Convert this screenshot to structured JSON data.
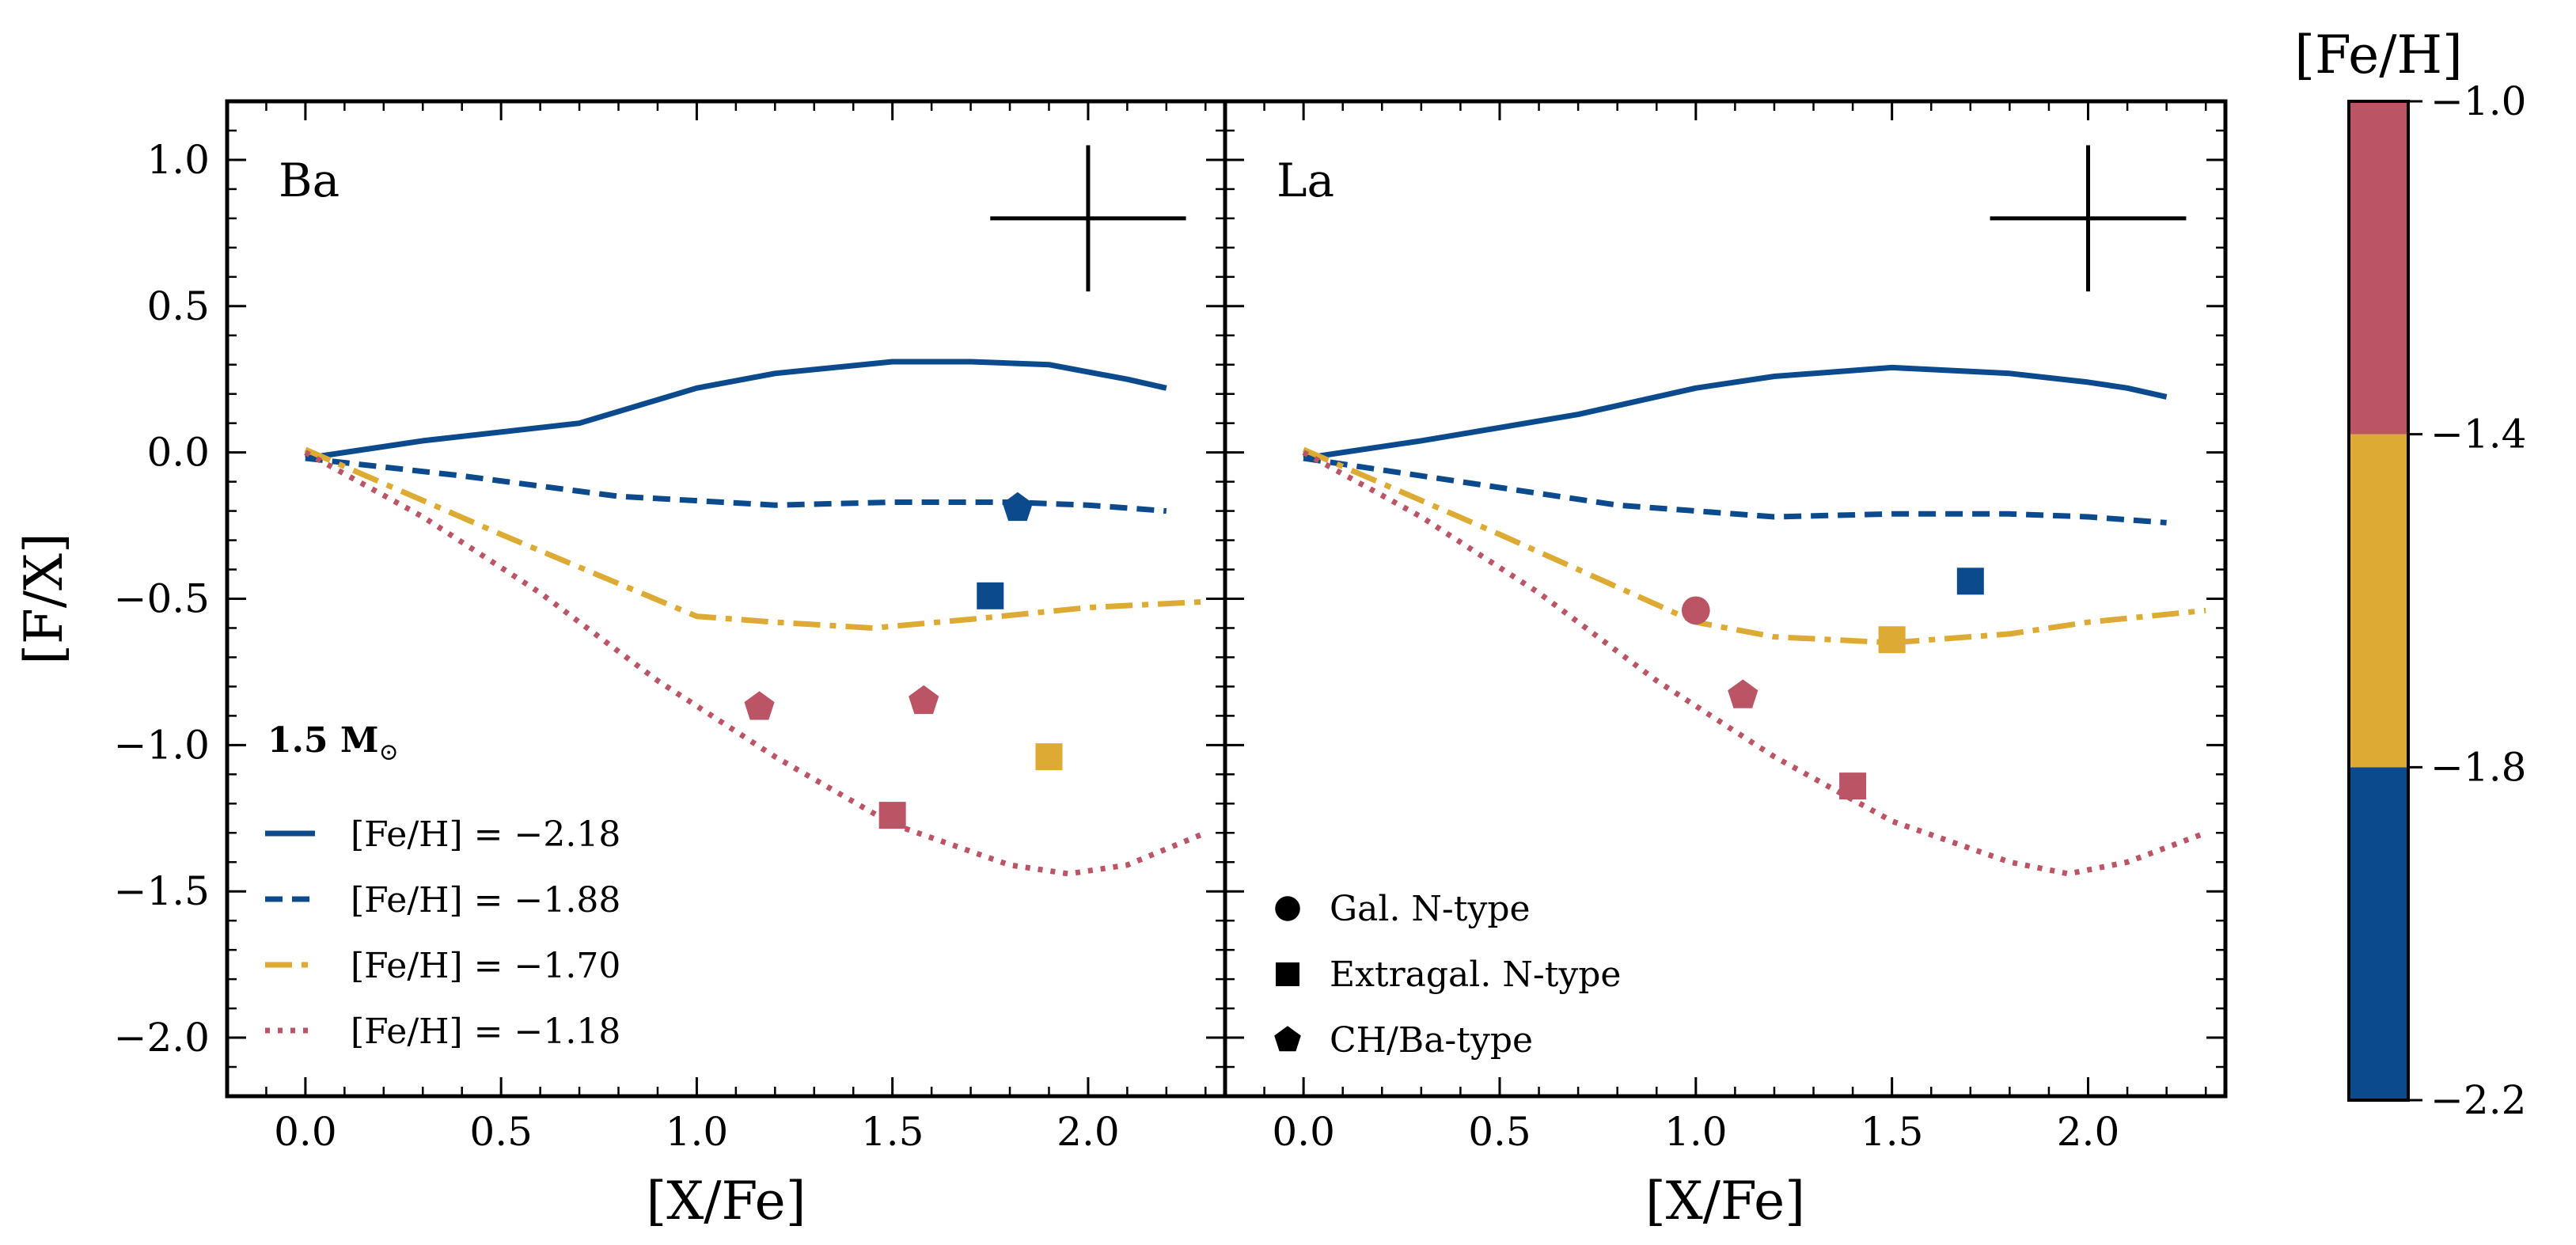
{
  "chart_data": {
    "type": "line",
    "mass_label": "1.5 M",
    "mass_label_symbol": "⊙",
    "xlabel": "[X/Fe]",
    "ylabel": "[F/X]",
    "xlim": [
      -0.2,
      2.35
    ],
    "ylim": [
      -2.2,
      1.2
    ],
    "x_ticks": [
      0.0,
      0.5,
      1.0,
      1.5,
      2.0
    ],
    "x_tick_labels": [
      "0.0",
      "0.5",
      "1.0",
      "1.5",
      "2.0"
    ],
    "y_ticks": [
      1.0,
      0.5,
      0.0,
      -0.5,
      -1.0,
      -1.5,
      -2.0
    ],
    "y_tick_labels": [
      "1.0",
      "0.5",
      "0.0",
      "−0.5",
      "−1.0",
      "−1.5",
      "−2.0"
    ],
    "colors": {
      "blue": "#0b4a8c",
      "yellow": "#ddaa33",
      "red": "#bb5566"
    },
    "legend_models": [
      {
        "label": "[Fe/H] = −2.18",
        "color": "#0b4a8c",
        "style": "solid"
      },
      {
        "label": "[Fe/H] = −1.88",
        "color": "#0b4a8c",
        "style": "dashed"
      },
      {
        "label": "[Fe/H] = −1.70",
        "color": "#ddaa33",
        "style": "dashdot"
      },
      {
        "label": "[Fe/H] = −1.18",
        "color": "#bb5566",
        "style": "dotted"
      }
    ],
    "legend_markers": [
      {
        "label": "Gal. N-type",
        "marker": "circle"
      },
      {
        "label": "Extragal. N-type",
        "marker": "square"
      },
      {
        "label": "CH/Ba-type",
        "marker": "pentagon"
      }
    ],
    "panels": [
      {
        "label": "Ba",
        "error_bar": {
          "x": 2.0,
          "y": 0.8,
          "dx": 0.25,
          "dy": 0.25
        },
        "series": [
          {
            "name": "[Fe/H] = −2.18",
            "style": "solid",
            "color": "#0b4a8c",
            "x": [
              0.0,
              0.3,
              0.7,
              1.0,
              1.2,
              1.5,
              1.7,
              1.9,
              2.1,
              2.2
            ],
            "y": [
              -0.02,
              0.04,
              0.1,
              0.22,
              0.27,
              0.31,
              0.31,
              0.3,
              0.25,
              0.22
            ]
          },
          {
            "name": "[Fe/H] = −1.88",
            "style": "dashed",
            "color": "#0b4a8c",
            "x": [
              0.0,
              0.4,
              0.8,
              1.2,
              1.5,
              1.8,
              2.0,
              2.2
            ],
            "y": [
              -0.02,
              -0.08,
              -0.15,
              -0.18,
              -0.17,
              -0.17,
              -0.18,
              -0.2
            ]
          },
          {
            "name": "[Fe/H] = −1.70",
            "style": "dashdot",
            "color": "#ddaa33",
            "x": [
              0.0,
              0.5,
              1.0,
              1.2,
              1.45,
              1.7,
              2.0,
              2.3
            ],
            "y": [
              0.01,
              -0.28,
              -0.56,
              -0.58,
              -0.6,
              -0.57,
              -0.53,
              -0.51
            ]
          },
          {
            "name": "[Fe/H] = −1.18",
            "style": "dotted",
            "color": "#bb5566",
            "x": [
              0.0,
              0.3,
              0.6,
              0.9,
              1.2,
              1.5,
              1.8,
              1.95,
              2.1,
              2.3
            ],
            "y": [
              0.0,
              -0.22,
              -0.48,
              -0.78,
              -1.04,
              -1.27,
              -1.41,
              -1.44,
              -1.41,
              -1.3
            ]
          }
        ],
        "observations": [
          {
            "x": 1.82,
            "y": -0.19,
            "marker": "pentagon",
            "color": "#0b4a8c"
          },
          {
            "x": 1.75,
            "y": -0.49,
            "marker": "square",
            "color": "#0b4a8c"
          },
          {
            "x": 1.16,
            "y": -0.87,
            "marker": "pentagon",
            "color": "#bb5566"
          },
          {
            "x": 1.58,
            "y": -0.85,
            "marker": "pentagon",
            "color": "#bb5566"
          },
          {
            "x": 1.9,
            "y": -1.04,
            "marker": "square",
            "color": "#ddaa33"
          },
          {
            "x": 1.5,
            "y": -1.24,
            "marker": "square",
            "color": "#bb5566"
          }
        ]
      },
      {
        "label": "La",
        "error_bar": {
          "x": 2.0,
          "y": 0.8,
          "dx": 0.25,
          "dy": 0.25
        },
        "series": [
          {
            "name": "[Fe/H] = −2.18",
            "style": "solid",
            "color": "#0b4a8c",
            "x": [
              0.0,
              0.3,
              0.7,
              1.0,
              1.2,
              1.5,
              1.8,
              2.0,
              2.1,
              2.2
            ],
            "y": [
              -0.02,
              0.04,
              0.13,
              0.22,
              0.26,
              0.29,
              0.27,
              0.24,
              0.22,
              0.19
            ]
          },
          {
            "name": "[Fe/H] = −1.88",
            "style": "dashed",
            "color": "#0b4a8c",
            "x": [
              0.0,
              0.4,
              0.8,
              1.2,
              1.5,
              1.8,
              2.0,
              2.2
            ],
            "y": [
              -0.02,
              -0.1,
              -0.18,
              -0.22,
              -0.21,
              -0.21,
              -0.22,
              -0.24
            ]
          },
          {
            "name": "[Fe/H] = −1.70",
            "style": "dashdot",
            "color": "#ddaa33",
            "x": [
              0.0,
              0.5,
              1.0,
              1.2,
              1.5,
              1.8,
              2.0,
              2.3
            ],
            "y": [
              0.01,
              -0.28,
              -0.58,
              -0.63,
              -0.65,
              -0.62,
              -0.58,
              -0.54
            ]
          },
          {
            "name": "[Fe/H] = −1.18",
            "style": "dotted",
            "color": "#bb5566",
            "x": [
              0.0,
              0.3,
              0.6,
              0.9,
              1.2,
              1.5,
              1.8,
              1.95,
              2.1,
              2.3
            ],
            "y": [
              0.0,
              -0.22,
              -0.48,
              -0.78,
              -1.04,
              -1.26,
              -1.4,
              -1.44,
              -1.4,
              -1.3
            ]
          }
        ],
        "observations": [
          {
            "x": 1.7,
            "y": -0.44,
            "marker": "square",
            "color": "#0b4a8c"
          },
          {
            "x": 1.0,
            "y": -0.54,
            "marker": "circle",
            "color": "#bb5566"
          },
          {
            "x": 1.5,
            "y": -0.64,
            "marker": "square",
            "color": "#ddaa33"
          },
          {
            "x": 1.12,
            "y": -0.83,
            "marker": "pentagon",
            "color": "#bb5566"
          },
          {
            "x": 1.4,
            "y": -1.14,
            "marker": "square",
            "color": "#bb5566"
          }
        ]
      }
    ],
    "colorbar": {
      "title": "[Fe/H]",
      "range": [
        -2.2,
        -1.0
      ],
      "ticks": [
        -1.0,
        -1.4,
        -1.8,
        -2.2
      ],
      "tick_labels": [
        "−1.0",
        "−1.4",
        "−1.8",
        "−2.2"
      ],
      "segments": [
        {
          "from": -2.2,
          "to": -1.8,
          "color": "#0b4a8c"
        },
        {
          "from": -1.8,
          "to": -1.4,
          "color": "#ddaa33"
        },
        {
          "from": -1.4,
          "to": -1.0,
          "color": "#bb5566"
        }
      ]
    }
  }
}
